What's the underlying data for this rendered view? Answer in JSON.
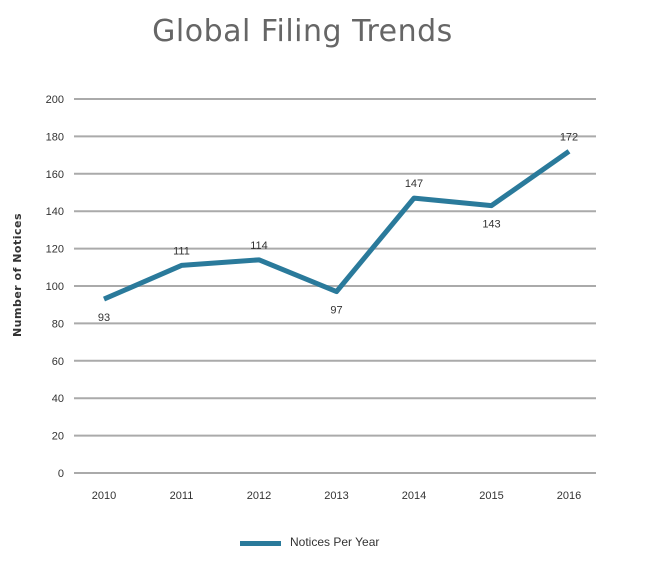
{
  "chart_data": {
    "type": "line",
    "title": "Global Filing Trends",
    "ylabel": "Number of Notices",
    "xlabel": "",
    "categories": [
      "2010",
      "2011",
      "2012",
      "2013",
      "2014",
      "2015",
      "2016"
    ],
    "series": [
      {
        "name": "Notices Per Year",
        "values": [
          93,
          111,
          114,
          97,
          147,
          143,
          172
        ],
        "color": "#2a7a9b"
      }
    ],
    "ylim": [
      0,
      200
    ],
    "yticks": [
      0,
      20,
      40,
      60,
      80,
      100,
      120,
      140,
      160,
      180,
      200
    ],
    "grid": true,
    "gridColor": "#aaaaaa",
    "legend": "bottom-center"
  }
}
